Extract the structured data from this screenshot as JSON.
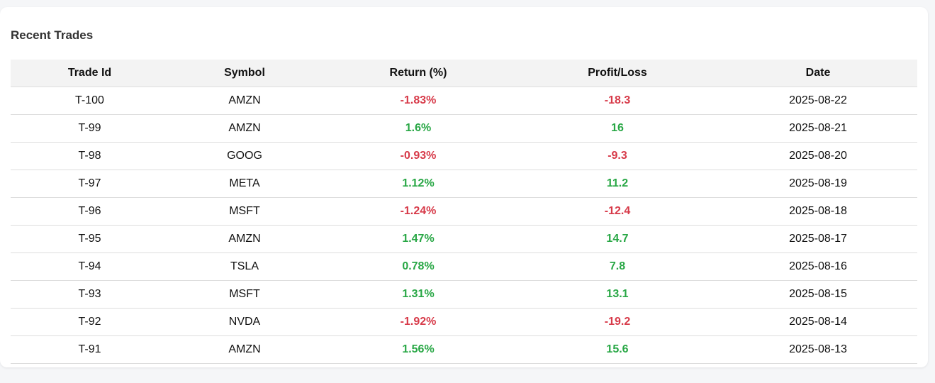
{
  "card": {
    "title": "Recent Trades"
  },
  "colors": {
    "positive": "#28a745",
    "negative": "#d73a49",
    "header_bg": "#f3f3f3"
  },
  "table": {
    "columns": [
      "Trade Id",
      "Symbol",
      "Return (%)",
      "Profit/Loss",
      "Date"
    ],
    "rows": [
      {
        "id": "T-100",
        "symbol": "AMZN",
        "ret": "-1.83%",
        "pl": "-18.3",
        "date": "2025-08-22",
        "sign": "neg"
      },
      {
        "id": "T-99",
        "symbol": "AMZN",
        "ret": "1.6%",
        "pl": "16",
        "date": "2025-08-21",
        "sign": "pos"
      },
      {
        "id": "T-98",
        "symbol": "GOOG",
        "ret": "-0.93%",
        "pl": "-9.3",
        "date": "2025-08-20",
        "sign": "neg"
      },
      {
        "id": "T-97",
        "symbol": "META",
        "ret": "1.12%",
        "pl": "11.2",
        "date": "2025-08-19",
        "sign": "pos"
      },
      {
        "id": "T-96",
        "symbol": "MSFT",
        "ret": "-1.24%",
        "pl": "-12.4",
        "date": "2025-08-18",
        "sign": "neg"
      },
      {
        "id": "T-95",
        "symbol": "AMZN",
        "ret": "1.47%",
        "pl": "14.7",
        "date": "2025-08-17",
        "sign": "pos"
      },
      {
        "id": "T-94",
        "symbol": "TSLA",
        "ret": "0.78%",
        "pl": "7.8",
        "date": "2025-08-16",
        "sign": "pos"
      },
      {
        "id": "T-93",
        "symbol": "MSFT",
        "ret": "1.31%",
        "pl": "13.1",
        "date": "2025-08-15",
        "sign": "pos"
      },
      {
        "id": "T-92",
        "symbol": "NVDA",
        "ret": "-1.92%",
        "pl": "-19.2",
        "date": "2025-08-14",
        "sign": "neg"
      },
      {
        "id": "T-91",
        "symbol": "AMZN",
        "ret": "1.56%",
        "pl": "15.6",
        "date": "2025-08-13",
        "sign": "pos"
      }
    ]
  }
}
